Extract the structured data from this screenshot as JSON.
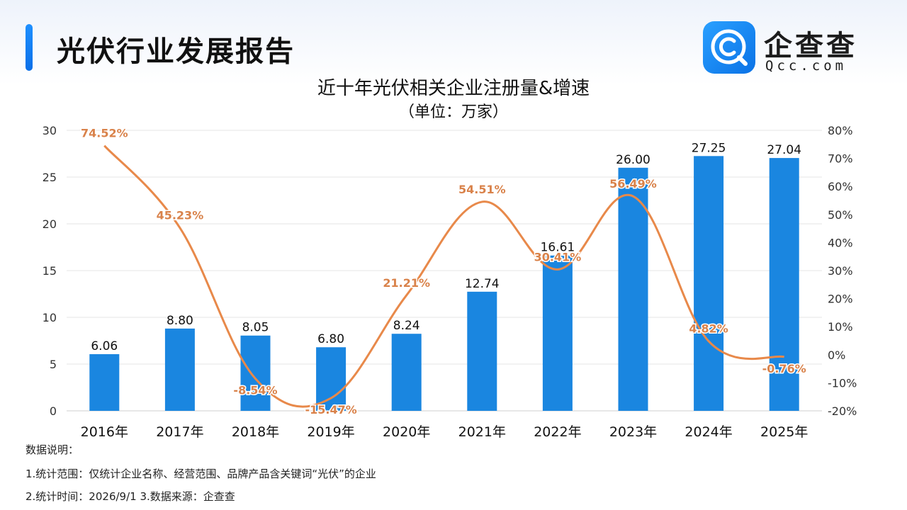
{
  "header": {
    "title": "光伏行业发展报告",
    "logo_name": "企查查",
    "logo_domain": "Qcc.com",
    "logo_icon": "qcc-magnifier-icon"
  },
  "chart_title": "近十年光伏相关企业注册量&增速",
  "chart_subtitle": "（单位：万家）",
  "colors": {
    "bar": "#1a86e0",
    "line": "#e8894a",
    "line_label": "#d9824a",
    "accent": "#1e90ff"
  },
  "chart_data": {
    "type": "bar",
    "categories": [
      "2016年",
      "2017年",
      "2018年",
      "2019年",
      "2020年",
      "2021年",
      "2022年",
      "2023年",
      "2024年",
      "2025年"
    ],
    "series": [
      {
        "type": "bar",
        "axis": "left",
        "values": [
          6.06,
          8.8,
          8.05,
          6.8,
          8.24,
          12.74,
          16.61,
          26.0,
          27.25,
          27.04
        ],
        "labels": [
          "6.06",
          "8.80",
          "8.05",
          "6.80",
          "8.24",
          "12.74",
          "16.61",
          "26.00",
          "27.25",
          "27.04"
        ]
      },
      {
        "type": "line",
        "axis": "right",
        "values": [
          74.52,
          45.23,
          -8.54,
          -15.47,
          21.21,
          54.51,
          30.41,
          56.49,
          4.82,
          -0.76
        ],
        "labels": [
          "74.52%",
          "45.23%",
          "-8.54%",
          "-15.47%",
          "21.21%",
          "54.51%",
          "30.41%",
          "56.49%",
          "4.82%",
          "-0.76%"
        ]
      }
    ],
    "y_left": {
      "min": 0,
      "max": 30,
      "ticks": [
        "0",
        "5",
        "10",
        "15",
        "20",
        "25",
        "30"
      ]
    },
    "y_right": {
      "min": -20,
      "max": 80,
      "ticks": [
        "-20%",
        "-10%",
        "0%",
        "10%",
        "20%",
        "30%",
        "40%",
        "50%",
        "60%",
        "70%",
        "80%"
      ]
    },
    "grid": true,
    "legend": "none"
  },
  "notes": {
    "heading": "数据说明：",
    "line1": "1.统计范围：仅统计企业名称、经营范围、品牌产品含关键词“光伏”的企业",
    "line2": "2.统计时间：2026/9/1  3.数据来源：企查查"
  }
}
